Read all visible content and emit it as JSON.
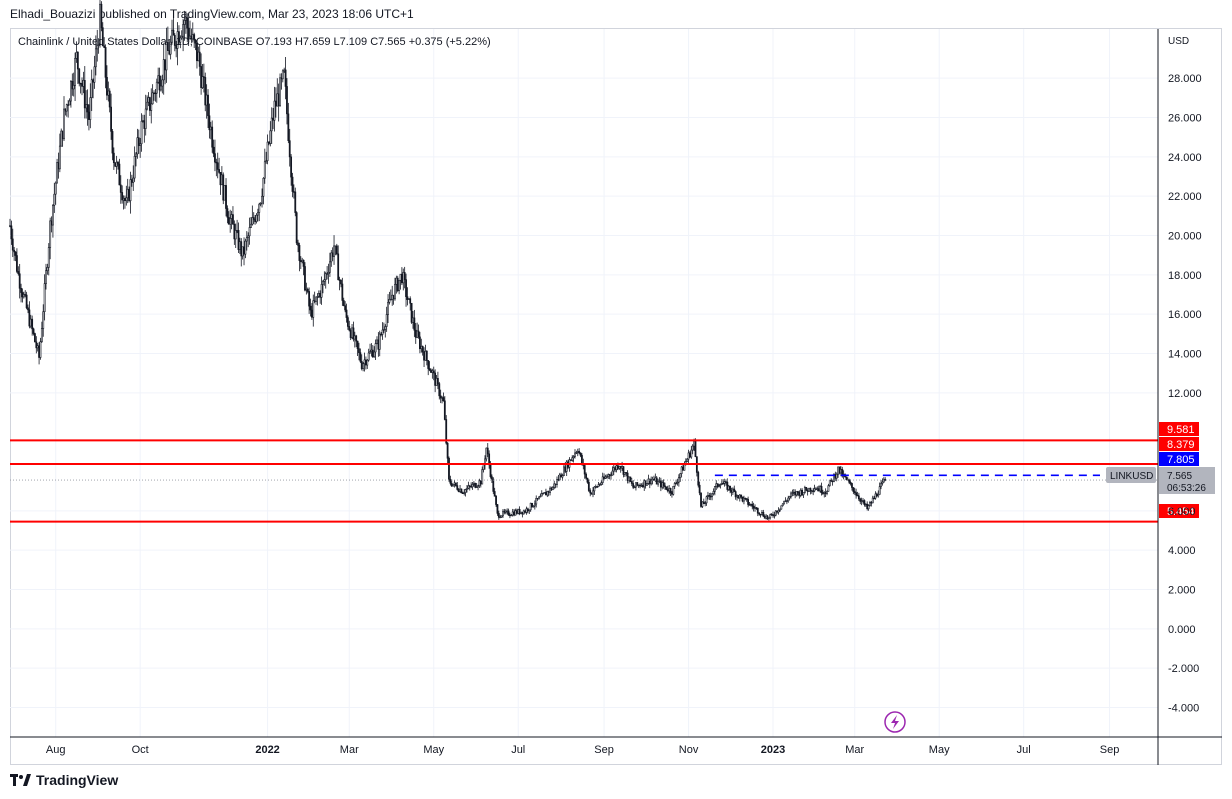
{
  "publisher_line": "Elhadi_Bouazizi published on TradingView.com, Mar 23, 2023 18:06 UTC+1",
  "footer_brand": "TradingView",
  "chart_data": {
    "type": "candlestick",
    "legend": "Chainlink / United States Dollar, 1D, COINBASE  O7.193  H7.659  L7.109  C7.565  +0.375 (+5.22%)",
    "currency": "USD",
    "symbol_label": "LINKUSD",
    "last_price": "7.565",
    "countdown": "06:53:26",
    "ylim": [
      -5.5,
      30.5
    ],
    "y_ticks": [
      {
        "v": 28,
        "label": "28.000"
      },
      {
        "v": 26,
        "label": "26.000"
      },
      {
        "v": 24,
        "label": "24.000"
      },
      {
        "v": 22,
        "label": "22.000"
      },
      {
        "v": 20,
        "label": "20.000"
      },
      {
        "v": 18,
        "label": "18.000"
      },
      {
        "v": 16,
        "label": "16.000"
      },
      {
        "v": 14,
        "label": "14.000"
      },
      {
        "v": 12,
        "label": "12.000"
      },
      {
        "v": 6,
        "label": "6.000"
      },
      {
        "v": 4,
        "label": "4.000"
      },
      {
        "v": 2,
        "label": "2.000"
      },
      {
        "v": 0,
        "label": "0.000"
      },
      {
        "v": -2,
        "label": "-2.000"
      },
      {
        "v": -4,
        "label": "-4.000"
      }
    ],
    "x_ticks": [
      {
        "date": "2021-08-01",
        "label": "Aug",
        "bold": false
      },
      {
        "date": "2021-10-01",
        "label": "Oct",
        "bold": false
      },
      {
        "date": "2022-01-01",
        "label": "2022",
        "bold": true
      },
      {
        "date": "2022-03-01",
        "label": "Mar",
        "bold": false
      },
      {
        "date": "2022-05-01",
        "label": "May",
        "bold": false
      },
      {
        "date": "2022-07-01",
        "label": "Jul",
        "bold": false
      },
      {
        "date": "2022-09-01",
        "label": "Sep",
        "bold": false
      },
      {
        "date": "2022-11-01",
        "label": "Nov",
        "bold": false
      },
      {
        "date": "2023-01-01",
        "label": "2023",
        "bold": true
      },
      {
        "date": "2023-03-01",
        "label": "Mar",
        "bold": false
      },
      {
        "date": "2023-05-01",
        "label": "May",
        "bold": false
      },
      {
        "date": "2023-07-01",
        "label": "Jul",
        "bold": false
      },
      {
        "date": "2023-09-01",
        "label": "Sep",
        "bold": false
      }
    ],
    "x_range": [
      "2021-06-29",
      "2023-10-06"
    ],
    "horizontal_levels": [
      {
        "value": 9.581,
        "label": "9.581",
        "color": "#ff0000",
        "style": "solid",
        "from_date": "2021-06-29"
      },
      {
        "value": 8.379,
        "label": "8.379",
        "color": "#ff0000",
        "style": "solid",
        "from_date": "2021-06-29"
      },
      {
        "value": 5.454,
        "label": "5.454",
        "color": "#ff0000",
        "style": "solid",
        "from_date": "2021-06-29"
      },
      {
        "value": 7.805,
        "label": "7.805",
        "color": "#0000ff",
        "style": "dashed",
        "from_date": "2022-11-20"
      }
    ],
    "price_path": [
      {
        "date": "2021-06-29",
        "close": 20.5
      },
      {
        "date": "2021-07-05",
        "close": 18.0
      },
      {
        "date": "2021-07-12",
        "close": 16.0
      },
      {
        "date": "2021-07-20",
        "close": 13.8
      },
      {
        "date": "2021-07-28",
        "close": 20.5
      },
      {
        "date": "2021-08-07",
        "close": 26.0
      },
      {
        "date": "2021-08-16",
        "close": 29.0
      },
      {
        "date": "2021-08-25",
        "close": 26.0
      },
      {
        "date": "2021-09-02",
        "close": 31.0
      },
      {
        "date": "2021-09-12",
        "close": 24.0
      },
      {
        "date": "2021-09-21",
        "close": 21.5
      },
      {
        "date": "2021-10-02",
        "close": 25.5
      },
      {
        "date": "2021-10-12",
        "close": 27.5
      },
      {
        "date": "2021-10-22",
        "close": 29.5
      },
      {
        "date": "2021-11-02",
        "close": 31.0
      },
      {
        "date": "2021-11-12",
        "close": 29.0
      },
      {
        "date": "2021-11-22",
        "close": 25.0
      },
      {
        "date": "2021-12-04",
        "close": 21.0
      },
      {
        "date": "2021-12-14",
        "close": 19.0
      },
      {
        "date": "2021-12-27",
        "close": 22.0
      },
      {
        "date": "2022-01-06",
        "close": 26.5
      },
      {
        "date": "2022-01-13",
        "close": 28.0
      },
      {
        "date": "2022-01-22",
        "close": 20.0
      },
      {
        "date": "2022-02-01",
        "close": 16.0
      },
      {
        "date": "2022-02-10",
        "close": 17.5
      },
      {
        "date": "2022-02-18",
        "close": 19.5
      },
      {
        "date": "2022-02-26",
        "close": 16.0
      },
      {
        "date": "2022-03-10",
        "close": 13.5
      },
      {
        "date": "2022-03-22",
        "close": 14.5
      },
      {
        "date": "2022-04-01",
        "close": 17.0
      },
      {
        "date": "2022-04-08",
        "close": 18.0
      },
      {
        "date": "2022-04-18",
        "close": 15.0
      },
      {
        "date": "2022-04-30",
        "close": 13.0
      },
      {
        "date": "2022-05-08",
        "close": 11.5
      },
      {
        "date": "2022-05-12",
        "close": 7.5
      },
      {
        "date": "2022-05-22",
        "close": 7.0
      },
      {
        "date": "2022-06-04",
        "close": 7.5
      },
      {
        "date": "2022-06-08",
        "close": 9.2
      },
      {
        "date": "2022-06-16",
        "close": 5.8
      },
      {
        "date": "2022-07-06",
        "close": 6.0
      },
      {
        "date": "2022-07-26",
        "close": 7.2
      },
      {
        "date": "2022-08-13",
        "close": 9.2
      },
      {
        "date": "2022-08-22",
        "close": 6.9
      },
      {
        "date": "2022-09-12",
        "close": 8.4
      },
      {
        "date": "2022-09-22",
        "close": 7.2
      },
      {
        "date": "2022-10-06",
        "close": 7.6
      },
      {
        "date": "2022-10-20",
        "close": 7.0
      },
      {
        "date": "2022-11-05",
        "close": 9.4
      },
      {
        "date": "2022-11-10",
        "close": 6.2
      },
      {
        "date": "2022-11-24",
        "close": 7.5
      },
      {
        "date": "2022-12-10",
        "close": 6.6
      },
      {
        "date": "2022-12-29",
        "close": 5.6
      },
      {
        "date": "2023-01-14",
        "close": 6.8
      },
      {
        "date": "2023-01-31",
        "close": 7.2
      },
      {
        "date": "2023-02-08",
        "close": 7.0
      },
      {
        "date": "2023-02-17",
        "close": 8.1
      },
      {
        "date": "2023-03-01",
        "close": 7.0
      },
      {
        "date": "2023-03-10",
        "close": 6.1
      },
      {
        "date": "2023-03-23",
        "close": 7.565
      }
    ]
  }
}
